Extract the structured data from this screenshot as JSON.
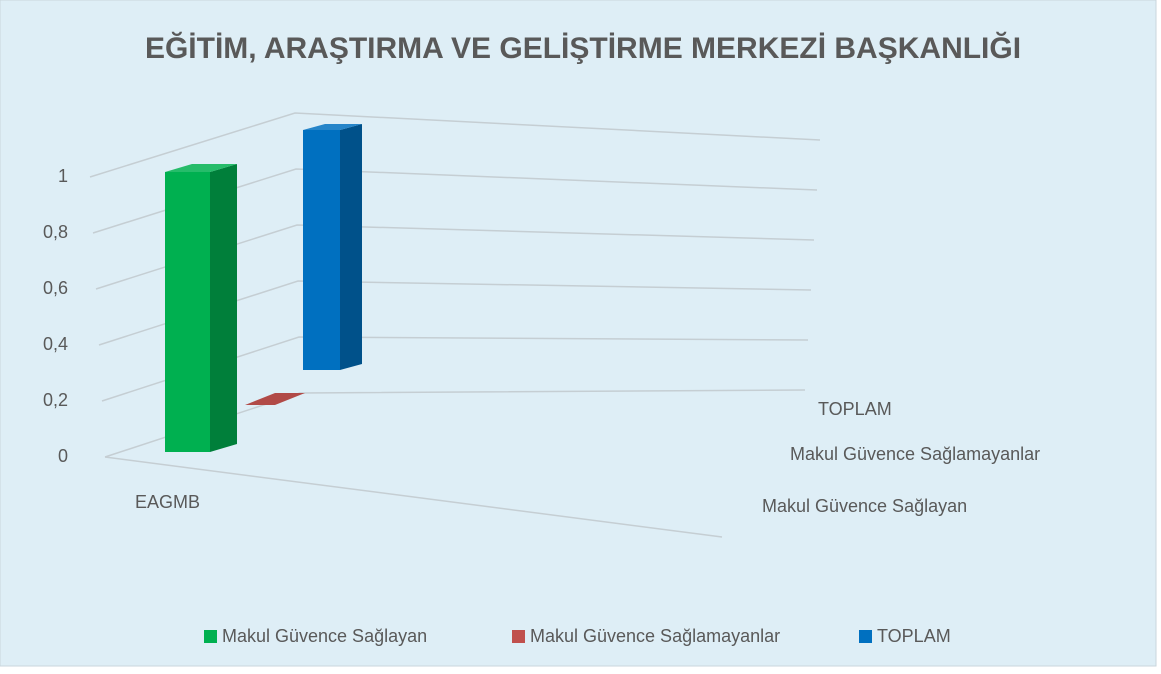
{
  "chart_data": {
    "type": "bar3d",
    "title": "EĞİTİM, ARAŞTIRMA VE GELİŞTİRME MERKEZİ BAŞKANLIĞI",
    "categories": [
      "EAGMB"
    ],
    "series": [
      {
        "name": "Makul Güvence Sağlayan",
        "color": "#00b050",
        "values": [
          1
        ]
      },
      {
        "name": "Makul Güvence Sağlamayanlar",
        "color": "#c0504d",
        "values": [
          0
        ]
      },
      {
        "name": "TOPLAM",
        "color": "#0070c0",
        "values": [
          1
        ]
      }
    ],
    "ylim": [
      0,
      1
    ],
    "yticks": [
      0,
      {
        "value": 0.2,
        "label": "0,2"
      },
      {
        "value": 0.4,
        "label": "0,4"
      },
      {
        "value": 0.6,
        "label": "0,6"
      },
      {
        "value": 0.8,
        "label": "0,8"
      },
      1
    ],
    "grid": true,
    "legend": "bottom"
  }
}
